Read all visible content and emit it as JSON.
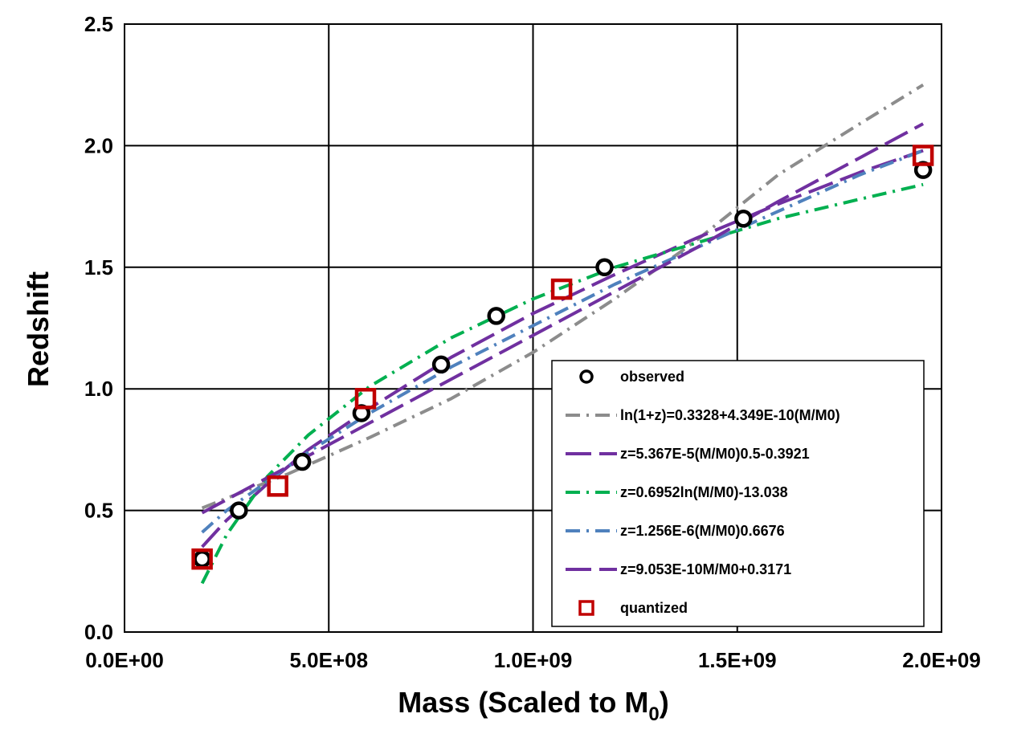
{
  "chart_data": {
    "type": "scatter",
    "xlabel": "Mass (Scaled to M",
    "xlabel_sub": "0",
    "xlabel_close": ")",
    "ylabel": "Redshift",
    "xlim": [
      0,
      2000000000
    ],
    "ylim": [
      0,
      2.5
    ],
    "x_ticks": [
      0,
      500000000,
      1000000000,
      1500000000,
      2000000000
    ],
    "x_tick_labels": [
      "0.0E+00",
      "5.0E+08",
      "1.0E+09",
      "1.5E+09",
      "2.0E+09"
    ],
    "y_ticks": [
      0,
      0.5,
      1,
      1.5,
      2,
      2.5
    ],
    "y_tick_labels": [
      "0.0",
      "0.5",
      "1.0",
      "1.5",
      "2.0",
      "2.5"
    ],
    "grid": true,
    "legend_position": "bottom-right",
    "series": [
      {
        "name": "observed",
        "kind": "scatter",
        "marker": "circle",
        "color": "#000000",
        "x": [
          190000000,
          280000000,
          435000000,
          580000000,
          775000000,
          910000000,
          1175000000,
          1515000000,
          1955000000
        ],
        "y": [
          0.3,
          0.5,
          0.7,
          0.9,
          1.1,
          1.3,
          1.5,
          1.7,
          1.9
        ]
      },
      {
        "name": "ln(1+z)=0.3328+4.349E-10(M/M0)",
        "kind": "line",
        "style": "dash-dot",
        "color": "#8c8c8c",
        "x": [
          190000000,
          400000000,
          600000000,
          800000000,
          1000000000,
          1200000000,
          1400000000,
          1600000000,
          1800000000,
          1955000000
        ],
        "y": [
          0.51,
          0.65,
          0.8,
          0.96,
          1.15,
          1.37,
          1.61,
          1.88,
          2.09,
          2.25
        ]
      },
      {
        "name": "z=5.367E-5(M/M0)0.5-0.3921",
        "kind": "line",
        "style": "long-dash",
        "color": "#7030a0",
        "x": [
          190000000,
          250000000,
          350000000,
          450000000,
          600000000,
          800000000,
          1000000000,
          1200000000,
          1400000000,
          1600000000,
          1800000000,
          1955000000
        ],
        "y": [
          0.35,
          0.46,
          0.61,
          0.75,
          0.92,
          1.13,
          1.31,
          1.47,
          1.62,
          1.76,
          1.89,
          1.98
        ]
      },
      {
        "name": "z=0.6952ln(M/M0)-13.038",
        "kind": "line",
        "style": "dash-dot",
        "color": "#00b050",
        "x": [
          190000000,
          250000000,
          350000000,
          450000000,
          600000000,
          800000000,
          1000000000,
          1200000000,
          1400000000,
          1600000000,
          1800000000,
          1955000000
        ],
        "y": [
          0.2,
          0.4,
          0.64,
          0.81,
          1.01,
          1.21,
          1.37,
          1.5,
          1.6,
          1.7,
          1.78,
          1.84
        ]
      },
      {
        "name": "z=1.256E-6(M/M0)0.6676",
        "kind": "line",
        "style": "dash-dot",
        "color": "#4f81bd",
        "x": [
          190000000,
          250000000,
          350000000,
          450000000,
          600000000,
          800000000,
          1000000000,
          1200000000,
          1400000000,
          1600000000,
          1800000000,
          1955000000
        ],
        "y": [
          0.41,
          0.5,
          0.62,
          0.74,
          0.9,
          1.09,
          1.26,
          1.43,
          1.58,
          1.73,
          1.88,
          1.98
        ]
      },
      {
        "name": "z=9.053E-10M/M0+0.3171",
        "kind": "line",
        "style": "long-dash",
        "color": "#7030a0",
        "x": [
          190000000,
          400000000,
          600000000,
          800000000,
          1000000000,
          1200000000,
          1400000000,
          1600000000,
          1800000000,
          1955000000
        ],
        "y": [
          0.49,
          0.68,
          0.86,
          1.04,
          1.22,
          1.4,
          1.58,
          1.77,
          1.95,
          2.09
        ]
      },
      {
        "name": "quantized",
        "kind": "scatter",
        "marker": "square",
        "color": "#c00000",
        "x": [
          190000000,
          375000000,
          590000000,
          1070000000,
          1955000000
        ],
        "y": [
          0.3,
          0.6,
          0.96,
          1.41,
          1.96
        ]
      }
    ]
  }
}
